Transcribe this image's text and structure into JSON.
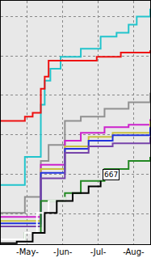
{
  "chart_data": {
    "type": "line",
    "line_style": "step",
    "grid": true,
    "tick_labels": "x",
    "xlim": [
      4.75,
      8.97
    ],
    "xticks": [
      {
        "value": 5.5,
        "label": "-May-"
      },
      {
        "value": 6.5,
        "label": "-Jun-"
      },
      {
        "value": 7.5,
        "label": "-Jul-"
      },
      {
        "value": 8.5,
        "label": "-Aug-"
      }
    ],
    "ylim": [
      345,
      1580
    ],
    "yticks": [
      500,
      700,
      900,
      1100,
      1300,
      1500
    ],
    "series": [
      {
        "color": "#22c4cc",
        "x": [
          4.75,
          5.43,
          5.88,
          5.99,
          6.15,
          6.44,
          7.01,
          7.57,
          8.02,
          8.36,
          8.59,
          8.97
        ],
        "values": [
          646,
          788,
          1053,
          1175,
          1235,
          1296,
          1337,
          1398,
          1418,
          1459,
          1500,
          1540
        ]
      },
      {
        "color": "#ee1111",
        "x": [
          4.75,
          5.43,
          5.65,
          5.88,
          5.99,
          6.1,
          7.46,
          8.14,
          8.97
        ],
        "values": [
          971,
          992,
          1012,
          1134,
          1195,
          1276,
          1296,
          1317,
          1329
        ]
      },
      {
        "color": "#909090",
        "x": [
          4.75,
          5.43,
          5.88,
          6.1,
          6.56,
          7.01,
          7.68,
          8.36,
          8.97
        ],
        "values": [
          504,
          585,
          768,
          849,
          971,
          992,
          1032,
          1065,
          1113
        ]
      },
      {
        "color": "#cc22cc",
        "x": [
          4.75,
          5.88,
          6.56,
          7.01,
          7.68,
          8.36,
          8.97
        ],
        "values": [
          483,
          748,
          870,
          910,
          939,
          951,
          979
        ]
      },
      {
        "color": "#c8c040",
        "x": [
          4.75,
          5.88,
          6.56,
          7.23,
          7.91,
          8.97
        ],
        "values": [
          463,
          727,
          841,
          890,
          910,
          971
        ]
      },
      {
        "color": "#2233dd",
        "x": [
          4.75,
          5.88,
          6.56,
          7.23,
          7.91,
          8.97
        ],
        "values": [
          451,
          707,
          829,
          870,
          898,
          939
        ]
      },
      {
        "color": "#7744aa",
        "x": [
          4.75,
          5.88,
          6.56,
          7.23,
          7.91,
          8.97
        ],
        "values": [
          435,
          679,
          809,
          841,
          857,
          890
        ]
      },
      {
        "color": "#228822",
        "x": [
          4.75,
          5.43,
          5.88,
          6.56,
          7.01,
          7.68,
          8.36,
          8.97
        ],
        "values": [
          370,
          402,
          565,
          605,
          666,
          727,
          768,
          788
        ]
      },
      {
        "color": "#ffffff",
        "x": [
          4.75,
          5.43,
          5.77,
          6.1,
          6.56
        ],
        "values": [
          370,
          402,
          504,
          565,
          585
        ]
      },
      {
        "color": "#000000",
        "x": [
          4.75,
          5.2,
          5.65,
          5.99,
          6.33,
          6.78,
          7.23,
          7.57
        ],
        "values": [
          350,
          358,
          402,
          504,
          565,
          605,
          638,
          667
        ],
        "value_labels": [
          null,
          null,
          null,
          null,
          null,
          null,
          null,
          "667"
        ]
      }
    ]
  }
}
